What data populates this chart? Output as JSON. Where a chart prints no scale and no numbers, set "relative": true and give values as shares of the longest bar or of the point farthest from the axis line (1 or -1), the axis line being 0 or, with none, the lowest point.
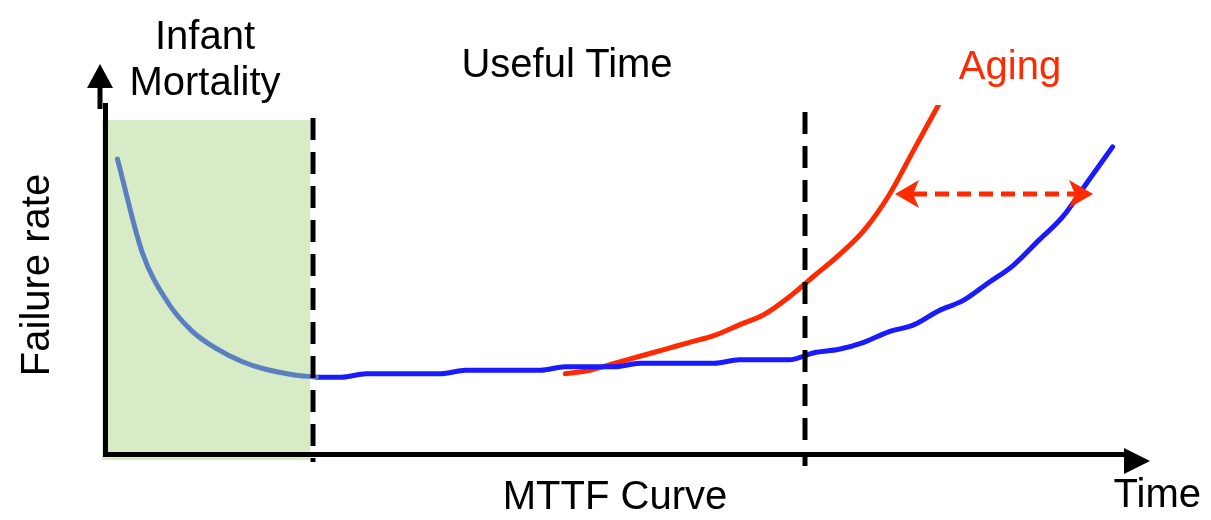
{
  "chart_data": {
    "type": "line",
    "relative": true,
    "xlabel": "Time",
    "ylabel": "Failure rate",
    "marker": "none",
    "line_style": "solid",
    "annotations": [
      "Infant Mortality",
      "Useful Time",
      "MTTF Curve"
    ],
    "categories": [
      null,
      null,
      null,
      null,
      null,
      null,
      null,
      null,
      null,
      null,
      null,
      null,
      null,
      null,
      null,
      null,
      null,
      null,
      null,
      null,
      null,
      null,
      null,
      null,
      null,
      null,
      null,
      null,
      null,
      null,
      null,
      null,
      null,
      null,
      null,
      null,
      null,
      null,
      null,
      null,
      null
    ],
    "series": [
      {
        "color": "#5b7fc1",
        "values": [
          0.845,
          0.577,
          0.437,
          0.352,
          0.301,
          0.265,
          0.242,
          0.228,
          0.22,
          null,
          null,
          null,
          null,
          null,
          null,
          null,
          null,
          null,
          null,
          null,
          null,
          null,
          null,
          null,
          null,
          null,
          null,
          null,
          null,
          null,
          null,
          null,
          null,
          null,
          null,
          null,
          null,
          null,
          null,
          null,
          null
        ]
      },
      {
        "color": "#1a1aff",
        "values": [
          null,
          null,
          null,
          null,
          null,
          null,
          null,
          null,
          0.22,
          0.22,
          0.23,
          0.23,
          0.23,
          0.23,
          0.24,
          0.24,
          0.24,
          0.24,
          0.25,
          0.25,
          0.25,
          0.26,
          0.26,
          0.26,
          0.26,
          0.27,
          0.27,
          0.27,
          0.29,
          0.3,
          0.32,
          0.35,
          0.37,
          0.41,
          0.44,
          0.49,
          0.54,
          0.61,
          0.68,
          0.78,
          0.88
        ]
      },
      {
        "name": "Aging",
        "color": "#ff2a00",
        "values": [
          null,
          null,
          null,
          null,
          null,
          null,
          null,
          null,
          null,
          null,
          null,
          null,
          null,
          null,
          null,
          null,
          null,
          null,
          0.23,
          0.24,
          0.26,
          0.28,
          0.3,
          0.32,
          0.34,
          0.37,
          0.4,
          0.45,
          0.51,
          0.57,
          0.64,
          0.74,
          0.87,
          1.0,
          null,
          null,
          null,
          null,
          null,
          null,
          null
        ]
      }
    ]
  }
}
